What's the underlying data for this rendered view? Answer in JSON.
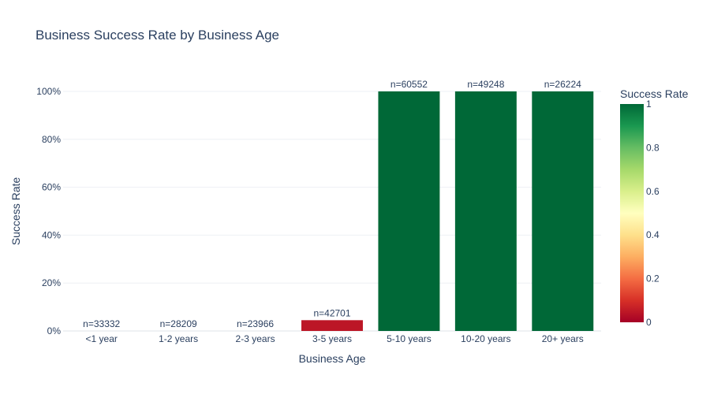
{
  "chart_data": {
    "type": "bar",
    "title": "Business Success Rate by Business Age",
    "xlabel": "Business Age",
    "ylabel": "Success Rate",
    "categories": [
      "<1 year",
      "1-2 years",
      "2-3 years",
      "3-5 years",
      "5-10 years",
      "10-20 years",
      "20+ years"
    ],
    "values": [
      0.0,
      0.0,
      0.0,
      0.045,
      1.0,
      1.0,
      1.0
    ],
    "data_labels": [
      "n=33332",
      "n=28209",
      "n=23966",
      "n=42701",
      "n=60552",
      "n=49248",
      "n=26224"
    ],
    "ylim": [
      0,
      1.0
    ],
    "yticks": [
      0,
      0.2,
      0.4,
      0.6,
      0.8,
      1.0
    ],
    "ytick_labels": [
      "0%",
      "20%",
      "40%",
      "60%",
      "80%",
      "100%"
    ],
    "grid": true,
    "colorbar": {
      "title": "Success Rate",
      "range": [
        0,
        1
      ],
      "ticks": [
        0,
        0.2,
        0.4,
        0.6,
        0.8,
        1
      ],
      "tick_labels": [
        "0",
        "0.2",
        "0.4",
        "0.6",
        "0.8",
        "1"
      ],
      "colorscale": [
        "#a50026",
        "#d73027",
        "#f46d43",
        "#fdae61",
        "#fee08b",
        "#ffffbf",
        "#d9ef8b",
        "#a6d96a",
        "#66bd63",
        "#1a9850",
        "#006837"
      ]
    }
  }
}
